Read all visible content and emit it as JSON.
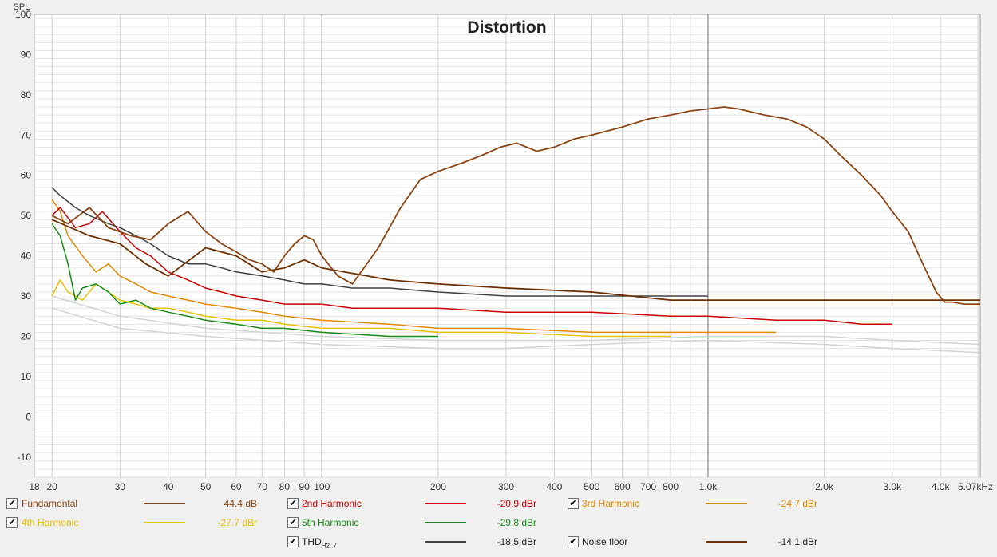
{
  "chart_data": {
    "type": "line",
    "title": "Distortion",
    "ylabel": "SPL",
    "xscale": "log",
    "xlim": [
      18,
      5070
    ],
    "ylim": [
      -15,
      100
    ],
    "grid": true,
    "x_ticks": [
      "18",
      "20",
      "30",
      "40",
      "50",
      "60",
      "70",
      "80",
      "90",
      "100",
      "200",
      "300",
      "400",
      "500",
      "600",
      "700",
      "800",
      "1.0k",
      "2.0k",
      "3.0k",
      "4.0k",
      "5.07kHz"
    ],
    "y_ticks": [
      "100",
      "90",
      "80",
      "70",
      "60",
      "50",
      "40",
      "30",
      "20",
      "10",
      "0",
      "-10"
    ],
    "series": [
      {
        "name": "Fundamental",
        "color": "#8b4513",
        "legend_value": "44.4 dB",
        "x": [
          20,
          22,
          25,
          28,
          32,
          36,
          40,
          45,
          50,
          55,
          60,
          65,
          70,
          75,
          80,
          85,
          90,
          95,
          100,
          110,
          120,
          140,
          160,
          180,
          200,
          230,
          260,
          290,
          320,
          360,
          400,
          450,
          500,
          600,
          700,
          800,
          900,
          1000,
          1100,
          1200,
          1400,
          1600,
          1800,
          2000,
          2200,
          2500,
          2800,
          3000,
          3300,
          3600,
          3900,
          4100,
          4300,
          4600,
          5070
        ],
        "y": [
          50,
          48,
          52,
          47,
          45,
          44,
          48,
          51,
          46,
          43,
          41,
          39,
          38,
          36,
          40,
          43,
          45,
          44,
          40,
          35,
          33,
          42,
          52,
          59,
          61,
          63,
          65,
          67,
          68,
          66,
          67,
          69,
          70,
          72,
          74,
          75,
          76,
          76.5,
          77,
          76.5,
          75,
          74,
          72,
          69,
          65,
          60,
          55,
          51,
          46,
          38,
          31,
          28.5,
          28.5,
          28,
          28
        ]
      },
      {
        "name": "2nd Harmonic",
        "color": "#cc0000",
        "legend_value": "-20.9 dBr",
        "x": [
          20,
          21,
          23,
          25,
          27,
          30,
          33,
          36,
          40,
          45,
          50,
          55,
          60,
          70,
          80,
          100,
          120,
          150,
          200,
          300,
          500,
          800,
          1000,
          1500,
          2000,
          2500,
          3000
        ],
        "y": [
          50,
          52,
          47,
          48,
          51,
          46,
          42,
          40,
          36,
          34,
          32,
          31,
          30,
          29,
          28,
          28,
          27,
          27,
          27,
          26,
          26,
          25,
          25,
          24,
          24,
          23,
          23
        ]
      },
      {
        "name": "3rd Harmonic",
        "color": "#e08a00",
        "legend_value": "-24.7 dBr",
        "x": [
          20,
          21,
          22,
          24,
          26,
          28,
          30,
          33,
          36,
          40,
          45,
          50,
          60,
          70,
          80,
          100,
          150,
          200,
          300,
          500,
          800,
          1000,
          1500
        ],
        "y": [
          54,
          51,
          45,
          40,
          36,
          38,
          35,
          33,
          31,
          30,
          29,
          28,
          27,
          26,
          25,
          24,
          23,
          22,
          22,
          21,
          21,
          21,
          21
        ]
      },
      {
        "name": "4th Harmonic",
        "color": "#e6c200",
        "legend_value": "-27.7 dBr",
        "x": [
          20,
          21,
          22,
          24,
          26,
          28,
          30,
          33,
          36,
          40,
          45,
          50,
          60,
          70,
          80,
          100,
          150,
          200,
          300,
          500,
          800
        ],
        "y": [
          30,
          34,
          31,
          29,
          33,
          31,
          29,
          28,
          27,
          27,
          26,
          25,
          24,
          24,
          23,
          22,
          22,
          21,
          21,
          20,
          20
        ]
      },
      {
        "name": "5th Harmonic",
        "color": "#1a8a1a",
        "legend_value": "-29.8 dBr",
        "x": [
          20,
          21,
          22,
          23,
          24,
          26,
          28,
          30,
          33,
          36,
          40,
          45,
          50,
          60,
          70,
          80,
          100,
          150,
          200
        ],
        "y": [
          48,
          45,
          38,
          29,
          32,
          33,
          31,
          28,
          29,
          27,
          26,
          25,
          24,
          23,
          22,
          22,
          21,
          20,
          20
        ]
      },
      {
        "name": "THD",
        "name_sub": "H2..7",
        "color": "#404040",
        "legend_value": "-18.5 dBr",
        "x": [
          20,
          21,
          23,
          25,
          28,
          30,
          33,
          36,
          40,
          45,
          50,
          55,
          60,
          70,
          80,
          90,
          100,
          120,
          150,
          200,
          300,
          500,
          800,
          1000
        ],
        "y": [
          57,
          55,
          52,
          50,
          48,
          47,
          45,
          43,
          40,
          38,
          38,
          37,
          36,
          35,
          34,
          33,
          33,
          32,
          32,
          31,
          30,
          30,
          30,
          30
        ]
      },
      {
        "name": "Noise floor",
        "color": "#6b3000",
        "legend_value": "-14.1 dBr",
        "x": [
          20,
          25,
          30,
          35,
          40,
          50,
          60,
          70,
          80,
          90,
          100,
          150,
          200,
          300,
          500,
          800,
          1000,
          1500,
          2000,
          3000,
          4000,
          5070
        ],
        "y": [
          49,
          45,
          43,
          38,
          35,
          42,
          40,
          36,
          37,
          39,
          37,
          34,
          33,
          32,
          31,
          29,
          29,
          29,
          29,
          29,
          29,
          29
        ]
      },
      {
        "name": "",
        "color": "#d4d4d4",
        "x": [
          20,
          30,
          50,
          100,
          200,
          300,
          500,
          1000,
          2000,
          3000,
          5070
        ],
        "y": [
          30,
          25,
          22,
          20,
          19,
          19,
          19,
          20,
          20,
          19,
          18
        ]
      },
      {
        "name": "",
        "color": "#d4d4d4",
        "x": [
          20,
          30,
          50,
          100,
          200,
          300,
          500,
          1000,
          2000,
          3000,
          5070
        ],
        "y": [
          27,
          22,
          20,
          18,
          17,
          17,
          18,
          19,
          18,
          17,
          16
        ]
      }
    ]
  }
}
